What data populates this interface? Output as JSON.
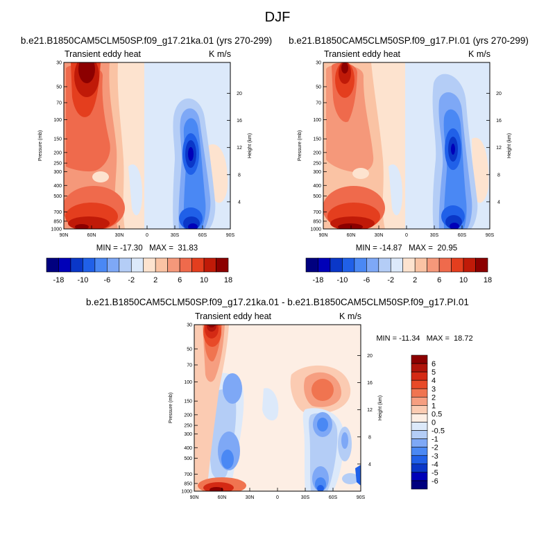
{
  "figure_title": "DJF",
  "chart_data": [
    {
      "type": "heatmap",
      "title": "b.e21.B1850CAM5CLM50SP.f09_g17.21ka.01 (yrs 270-299)",
      "left_subtitle": "Transient eddy heat",
      "right_subtitle": "K m/s",
      "ylabel": "Pressure (mb)",
      "ylabel_right": "Height (km)",
      "x_ticks": [
        "90N",
        "60N",
        "30N",
        "0",
        "30S",
        "60S",
        "90S"
      ],
      "y_ticks": [
        "30",
        "50",
        "70",
        "100",
        "150",
        "200",
        "250",
        "300",
        "400",
        "500",
        "700",
        "850",
        "1000"
      ],
      "height_ticks": [
        "4",
        "8",
        "12",
        "16",
        "20"
      ],
      "stats": "MIN = -17.30   MAX =  31.83",
      "min": -17.3,
      "max": 31.83,
      "features": [
        {
          "lat": 68,
          "p": 35,
          "value": 31
        },
        {
          "lat": 40,
          "p": 870,
          "value": 18
        },
        {
          "lat": -45,
          "p": 200,
          "value": -17
        },
        {
          "lat": -45,
          "p": 880,
          "value": -14
        }
      ]
    },
    {
      "type": "heatmap",
      "title": "b.e21.B1850CAM5CLM50SP.f09_g17.PI.01 (yrs 270-299)",
      "left_subtitle": "Transient eddy heat",
      "right_subtitle": "K m/s",
      "ylabel": "Pressure (mb)",
      "ylabel_right": "Height (km)",
      "x_ticks": [
        "90N",
        "60N",
        "30N",
        "0",
        "30S",
        "60S",
        "90S"
      ],
      "y_ticks": [
        "30",
        "50",
        "70",
        "100",
        "150",
        "200",
        "250",
        "300",
        "400",
        "500",
        "700",
        "850",
        "1000"
      ],
      "height_ticks": [
        "4",
        "8",
        "12",
        "16",
        "20"
      ],
      "stats": "MIN = -14.87   MAX =  20.95",
      "min": -14.87,
      "max": 20.95,
      "features": [
        {
          "lat": 65,
          "p": 35,
          "value": 20
        },
        {
          "lat": 45,
          "p": 880,
          "value": 16
        },
        {
          "lat": -45,
          "p": 200,
          "value": -14
        },
        {
          "lat": -45,
          "p": 880,
          "value": -12
        }
      ]
    },
    {
      "type": "heatmap",
      "title": "b.e21.B1850CAM5CLM50SP.f09_g17.21ka.01 - b.e21.B1850CAM5CLM50SP.f09_g17.PI.01",
      "left_subtitle": "Transient eddy heat",
      "right_subtitle": "K m/s",
      "ylabel": "Pressure (mb)",
      "ylabel_right": "Height (km)",
      "x_ticks": [
        "90N",
        "60N",
        "30N",
        "0",
        "30S",
        "60S",
        "90S"
      ],
      "y_ticks": [
        "30",
        "50",
        "70",
        "100",
        "150",
        "200",
        "250",
        "300",
        "400",
        "500",
        "700",
        "850",
        "1000"
      ],
      "height_ticks": [
        "4",
        "8",
        "12",
        "16",
        "20"
      ],
      "stats": "MIN = -11.34   MAX =  18.72",
      "min": -11.34,
      "max": 18.72,
      "features": [
        {
          "lat": 70,
          "p": 35,
          "value": 18
        },
        {
          "lat": 55,
          "p": 950,
          "value": 8
        },
        {
          "lat": -45,
          "p": 230,
          "value": -5
        },
        {
          "lat": -45,
          "p": 900,
          "value": -6
        }
      ]
    }
  ],
  "colorbars": [
    {
      "labels": [
        "-18",
        "-10",
        "-6",
        "-2",
        "2",
        "6",
        "10",
        "18"
      ],
      "colors": [
        "#00007f",
        "#0000b8",
        "#0a37c8",
        "#2060e8",
        "#4a88f4",
        "#7ea8f6",
        "#b4cdf6",
        "#dce9fa",
        "#fde3cf",
        "#fac3a4",
        "#f5987a",
        "#ef6a4c",
        "#e43e1e",
        "#c01a08",
        "#8c0000"
      ]
    },
    {
      "labels": [
        "-18",
        "-10",
        "-6",
        "-2",
        "2",
        "6",
        "10",
        "18"
      ],
      "colors": [
        "#00007f",
        "#0000b8",
        "#0a37c8",
        "#2060e8",
        "#4a88f4",
        "#7ea8f6",
        "#b4cdf6",
        "#dce9fa",
        "#fde3cf",
        "#fac3a4",
        "#f5987a",
        "#ef6a4c",
        "#e43e1e",
        "#c01a08",
        "#8c0000"
      ]
    },
    {
      "labels": [
        "6",
        "5",
        "4",
        "3",
        "2",
        "1",
        "0.5",
        "0",
        "-0.5",
        "-1",
        "-2",
        "-3",
        "-4",
        "-5",
        "-6"
      ],
      "colors": [
        "#8c0000",
        "#b0140a",
        "#d42a14",
        "#e84a28",
        "#f07450",
        "#f69e80",
        "#fbcbb2",
        "#fdeee4",
        "#dce9fa",
        "#b4cdf6",
        "#7ea8f6",
        "#4a88f4",
        "#2060e8",
        "#0a37c8",
        "#0000b8",
        "#00007f"
      ]
    }
  ]
}
